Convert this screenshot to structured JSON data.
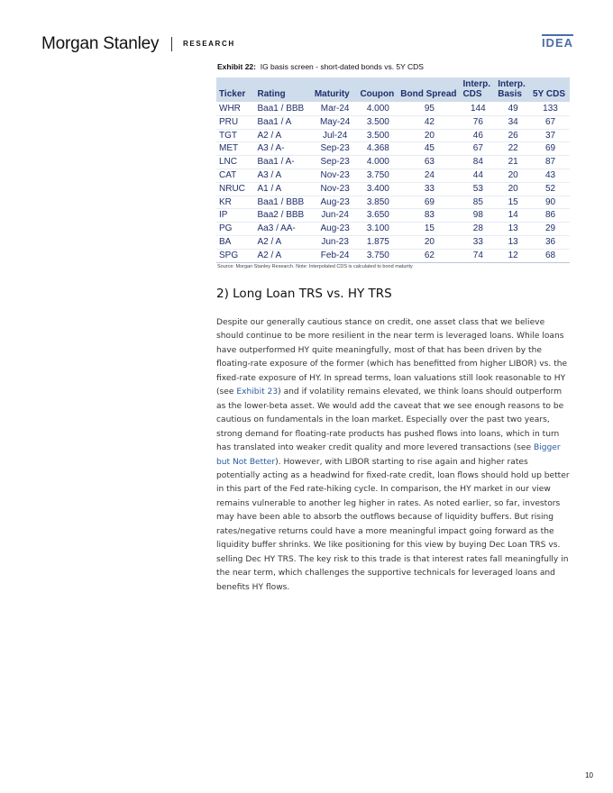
{
  "header": {
    "brand": "Morgan Stanley",
    "section": "RESEARCH",
    "badge": "IDEA"
  },
  "exhibit": {
    "label": "Exhibit 22:",
    "title": "IG basis screen - short-dated bonds vs. 5Y CDS"
  },
  "table": {
    "columns": [
      "Ticker",
      "Rating",
      "Maturity",
      "Coupon",
      "Bond Spread",
      "Interp. CDS",
      "Interp. Basis",
      "5Y CDS"
    ],
    "rows": [
      [
        "WHR",
        "Baa1 / BBB",
        "Mar-24",
        "4.000",
        "95",
        "144",
        "49",
        "133"
      ],
      [
        "PRU",
        "Baa1 / A",
        "May-24",
        "3.500",
        "42",
        "76",
        "34",
        "67"
      ],
      [
        "TGT",
        "A2 / A",
        "Jul-24",
        "3.500",
        "20",
        "46",
        "26",
        "37"
      ],
      [
        "MET",
        "A3 / A-",
        "Sep-23",
        "4.368",
        "45",
        "67",
        "22",
        "69"
      ],
      [
        "LNC",
        "Baa1 / A-",
        "Sep-23",
        "4.000",
        "63",
        "84",
        "21",
        "87"
      ],
      [
        "CAT",
        "A3 / A",
        "Nov-23",
        "3.750",
        "24",
        "44",
        "20",
        "43"
      ],
      [
        "NRUC",
        "A1 / A",
        "Nov-23",
        "3.400",
        "33",
        "53",
        "20",
        "52"
      ],
      [
        "KR",
        "Baa1 / BBB",
        "Aug-23",
        "3.850",
        "69",
        "85",
        "15",
        "90"
      ],
      [
        "IP",
        "Baa2 / BBB",
        "Jun-24",
        "3.650",
        "83",
        "98",
        "14",
        "86"
      ],
      [
        "PG",
        "Aa3 / AA-",
        "Aug-23",
        "3.100",
        "15",
        "28",
        "13",
        "29"
      ],
      [
        "BA",
        "A2 / A",
        "Jun-23",
        "1.875",
        "20",
        "33",
        "13",
        "36"
      ],
      [
        "SPG",
        "A2 / A",
        "Feb-24",
        "3.750",
        "62",
        "74",
        "12",
        "68"
      ]
    ]
  },
  "source": "Source: Morgan Stanley Research. Note: Interpolated CDS is calculated to bond maturity",
  "section_heading": "2) Long Loan TRS vs. HY TRS",
  "paragraph": {
    "p1": "Despite our generally cautious stance on credit, one asset class that we believe should continue to be more resilient in the near term is leveraged loans. While loans have outperformed HY quite meaningfully, most of that has been driven by the floating-rate exposure of the former (which has benefitted from higher LIBOR) vs. the fixed-rate exposure of HY. In spread terms, loan valuations still look reasonable to HY (see ",
    "link1": "Exhibit 23",
    "p2": ") and if volatility remains elevated, we think loans should outperform as the lower-beta asset. We would add the caveat that we see enough reasons to be cautious on fundamentals in the loan market. Especially over the past two years, strong demand for floating-rate products has pushed flows into loans, which in turn has translated into weaker credit quality and more levered transactions (see ",
    "link2": "Bigger but Not Better",
    "p3": "). However, with LIBOR starting to rise again and higher rates potentially acting as a headwind for fixed-rate credit, loan flows should hold up better in this part of the Fed rate-hiking cycle. In comparison, the HY market in our view remains vulnerable to another leg higher in rates. As noted earlier, so far, investors may have been able to absorb the outflows because of liquidity buffers. But rising rates/negative returns could have a more meaningful impact going forward as the liquidity buffer shrinks. We like positioning for this view by buying Dec Loan TRS vs. selling Dec HY TRS. The key risk to this trade is that interest rates fall meaningfully in the near term, which challenges the supportive technicals for leveraged loans and benefits HY flows."
  },
  "page_number": "10",
  "colors": {
    "accent": "#4a6fa5",
    "table_header": "#cfdceb",
    "table_text": "#1f2f6b",
    "link": "#2a5aa0"
  }
}
